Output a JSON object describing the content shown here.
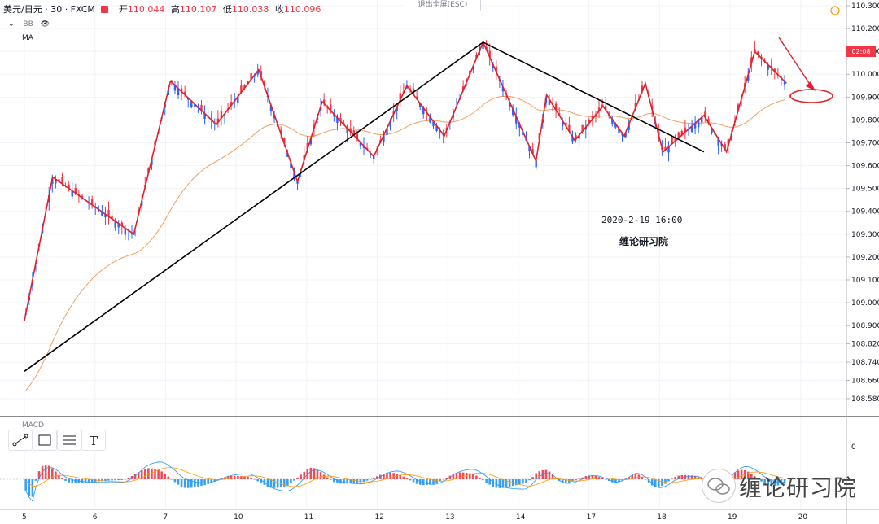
{
  "header": {
    "symbol": "美元/日元 · 30 · FXCM",
    "ohlc": [
      {
        "key": "开",
        "val": "110.044"
      },
      {
        "key": "高",
        "val": "110.107"
      },
      {
        "key": "低",
        "val": "110.038"
      },
      {
        "key": "收",
        "val": "110.096"
      }
    ]
  },
  "indicators": {
    "bb": "BB",
    "ma": "MA",
    "macd": "MACD"
  },
  "exit_fullscreen": "退出全屏(ESC)",
  "annotation": {
    "date": "2020-2-19 16:00",
    "org": "缠论研习院"
  },
  "watermark": "缠论研习院",
  "current_price_tag": "02:08",
  "colors": {
    "up": "#2962ff",
    "down": "#f23645",
    "zigzag": "#e0202a",
    "trend": "#000000",
    "ma": "#f0a060"
  },
  "chart_data": {
    "type": "line",
    "title": "",
    "price_axis": [
      "110.300",
      "110.200",
      "110.100",
      "110.000",
      "109.900",
      "109.800",
      "109.700",
      "109.600",
      "109.500",
      "109.400",
      "109.300",
      "109.200",
      "109.100",
      "109.000",
      "108.900",
      "108.820",
      "108.740",
      "108.660",
      "108.580"
    ],
    "macd_axis": [
      "0"
    ],
    "x_ticks": [
      "5",
      "6",
      "7",
      "10",
      "11",
      "12",
      "13",
      "14",
      "17",
      "18",
      "19",
      "20"
    ],
    "ylim": [
      108.5,
      110.32
    ],
    "series": [
      {
        "name": "",
        "x": [
          0,
          0.4,
          1.55,
          2.07,
          2.72,
          3.32,
          3.87,
          4.22,
          4.95,
          5.42,
          5.95,
          6.5,
          7.25,
          7.4,
          7.8,
          8.2,
          8.5,
          8.8,
          9.05,
          9.63,
          9.95,
          10.35,
          10.8
        ],
        "y": [
          108.92,
          109.55,
          109.3,
          109.97,
          109.78,
          110.02,
          109.53,
          109.88,
          109.64,
          109.95,
          109.73,
          110.14,
          109.62,
          109.91,
          109.71,
          109.86,
          109.73,
          109.96,
          109.66,
          109.82,
          109.66,
          110.1,
          109.96
        ]
      },
      {
        "name": "",
        "x": [
          0,
          6.5,
          9.63
        ],
        "y": [
          108.7,
          110.14,
          109.66
        ]
      }
    ]
  }
}
